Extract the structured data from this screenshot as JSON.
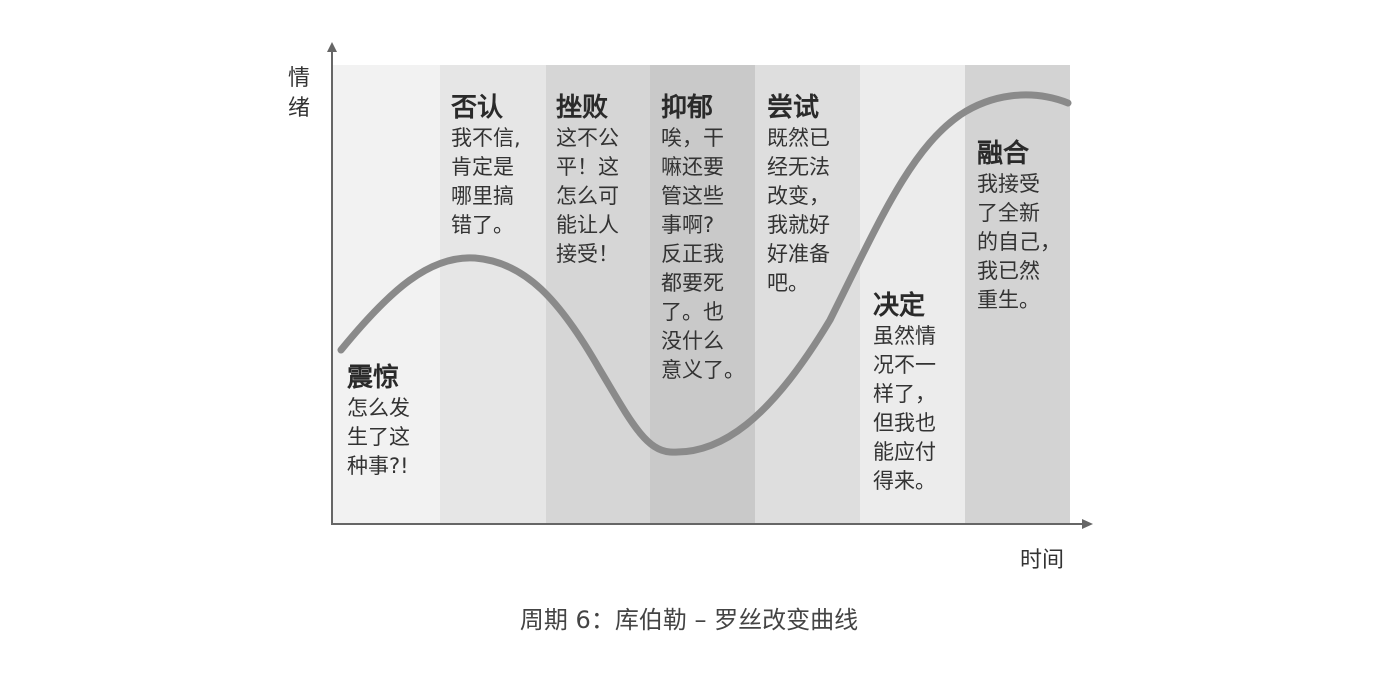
{
  "axes": {
    "y_label": "情\n绪",
    "x_label": "时间"
  },
  "band_colors": [
    "#f2f2f2",
    "#e6e6e6",
    "#d6d6d6",
    "#c9c9c9",
    "#dedede",
    "#ececec",
    "#d3d3d3"
  ],
  "curve_color": "#8a8a8a",
  "stages": [
    {
      "title": "震惊",
      "body": "怎么发\n生了这\n种事?!"
    },
    {
      "title": "否认",
      "body": "我不信,\n肯定是\n哪里搞\n错了。"
    },
    {
      "title": "挫败",
      "body": "这不公\n平！这\n怎么可\n能让人\n接受！"
    },
    {
      "title": "抑郁",
      "body": "唉，干\n嘛还要\n管这些\n事啊?\n反正我\n都要死\n了。也\n没什么\n意义了。"
    },
    {
      "title": "尝试",
      "body": "既然已\n经无法\n改变，\n我就好\n好准备\n吧。"
    },
    {
      "title": "决定",
      "body": "虽然情\n况不一\n样了，\n但我也\n能应付\n得来。"
    },
    {
      "title": "融合",
      "body": "我接受\n了全新\n的自己，\n我已然\n重生。"
    }
  ],
  "caption": "周期 6：库伯勒 – 罗丝改变曲线"
}
